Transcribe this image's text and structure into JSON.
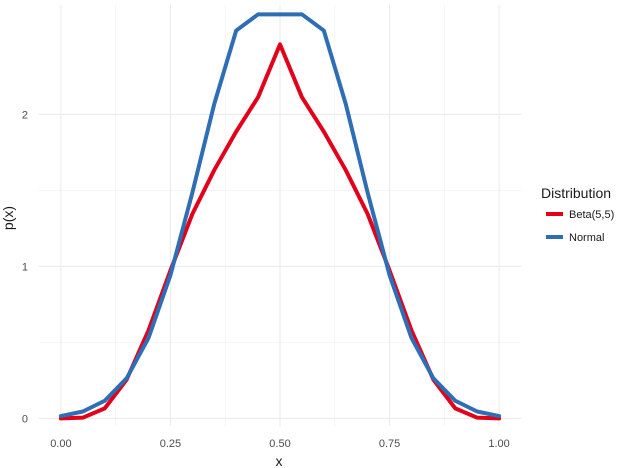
{
  "chart_data": {
    "type": "line",
    "xlabel": "x",
    "ylabel": "p(x)",
    "xlim": [
      -0.05,
      1.05
    ],
    "ylim": [
      -0.05,
      2.72
    ],
    "x_ticks": [
      0,
      0.25,
      0.5,
      0.75,
      1
    ],
    "x_tick_labels": [
      "0.00",
      "0.25",
      "0.50",
      "0.75",
      "1.00"
    ],
    "y_ticks": [
      0,
      1,
      2
    ],
    "y_tick_labels": [
      "0",
      "1",
      "2"
    ],
    "grid": true,
    "legend": {
      "title": "Distribution",
      "placement": "right"
    },
    "series": [
      {
        "name": "Beta(5,5)",
        "color": "#E3001B",
        "x": [
          0,
          0.05,
          0.1,
          0.15,
          0.2,
          0.25,
          0.3,
          0.35,
          0.4,
          0.45,
          0.5,
          0.55,
          0.6,
          0.65,
          0.7,
          0.75,
          0.8,
          0.85,
          0.9,
          0.95,
          1
        ],
        "y": [
          0,
          0.0048,
          0.0661,
          0.2552,
          0.5798,
          0.9734,
          1.3447,
          1.6339,
          1.8869,
          2.1135,
          2.4609,
          2.1135,
          1.8869,
          1.6339,
          1.3447,
          0.9734,
          0.5798,
          0.2552,
          0.0661,
          0.0048,
          0
        ]
      },
      {
        "name": "Normal",
        "color": "#2E6EB5",
        "x": [
          0,
          0.05,
          0.1,
          0.15,
          0.2,
          0.25,
          0.3,
          0.35,
          0.4,
          0.45,
          0.5,
          0.55,
          0.6,
          0.65,
          0.7,
          0.75,
          0.8,
          0.85,
          0.9,
          0.95,
          1
        ],
        "y": [
          0.0155,
          0.0454,
          0.1161,
          0.2638,
          0.5303,
          0.9431,
          1.4852,
          2.0694,
          2.5519,
          2.6587,
          2.6587,
          2.6587,
          2.5519,
          2.0694,
          1.4852,
          0.9431,
          0.5303,
          0.2638,
          0.1161,
          0.0454,
          0.0155
        ]
      }
    ]
  }
}
